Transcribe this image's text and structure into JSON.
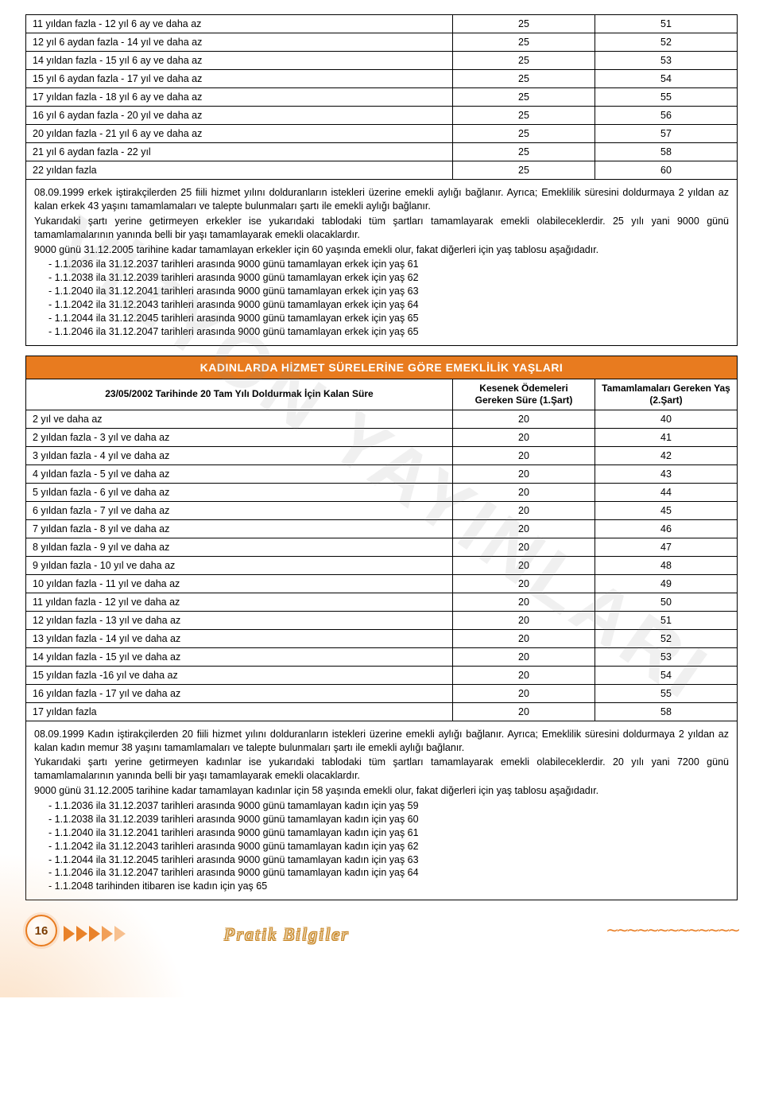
{
  "watermark": "VİZYON YAYINLARI",
  "table1": {
    "rows": [
      [
        "11 yıldan fazla - 12 yıl 6 ay ve daha az",
        "25",
        "51"
      ],
      [
        "12 yıl 6 aydan fazla - 14 yıl ve daha az",
        "25",
        "52"
      ],
      [
        "14 yıldan fazla - 15 yıl 6 ay ve daha az",
        "25",
        "53"
      ],
      [
        "15 yıl 6 aydan fazla - 17 yıl ve daha az",
        "25",
        "54"
      ],
      [
        "17 yıldan fazla - 18 yıl 6 ay ve daha az",
        "25",
        "55"
      ],
      [
        "16 yıl 6 aydan fazla - 20 yıl ve daha az",
        "25",
        "56"
      ],
      [
        "20 yıldan fazla - 21 yıl 6 ay ve daha az",
        "25",
        "57"
      ],
      [
        "21 yıl 6 aydan fazla - 22 yıl",
        "25",
        "58"
      ],
      [
        "22 yıldan fazla",
        "25",
        "60"
      ]
    ],
    "notes": {
      "paragraphs": [
        "08.09.1999 erkek iştirakçilerden 25 fiili hizmet yılını dolduranların istekleri üzerine emekli aylığı bağlanır. Ayrıca; Emeklilik süresini doldurmaya 2 yıldan az kalan erkek 43 yaşını tamamlamaları ve talepte bulunmaları şartı ile emekli aylığı bağlanır.",
        "Yukarıdaki şartı yerine getirmeyen erkekler ise yukarıdaki tablodaki tüm şartları tamamlayarak emekli olabileceklerdir. 25 yılı yani 9000 günü tamamlamalarının yanında belli bir yaşı tamamlayarak emekli olacaklardır.",
        "9000 günü 31.12.2005 tarihine kadar tamamlayan erkekler için 60 yaşında emekli olur, fakat diğerleri için yaş tablosu aşağıdadır."
      ],
      "bullets": [
        "- 1.1.2036 ila 31.12.2037 tarihleri arasında 9000 günü tamamlayan erkek için yaş 61",
        "- 1.1.2038 ila 31.12.2039 tarihleri arasında 9000 günü tamamlayan erkek için yaş 62",
        "- 1.1.2040 ila 31.12.2041 tarihleri arasında 9000 günü tamamlayan erkek için yaş 63",
        "- 1.1.2042 ila 31.12.2043 tarihleri arasında 9000 günü tamamlayan erkek için yaş 64",
        "- 1.1.2044 ila 31.12.2045 tarihleri arasında 9000 günü tamamlayan erkek için yaş 65",
        "- 1.1.2046 ila 31.12.2047 tarihleri arasında 9000 günü tamamlayan erkek için yaş 65"
      ]
    }
  },
  "table2": {
    "title": "KADINLARDA HİZMET SÜRELERİNE GÖRE EMEKLİLİK YAŞLARI",
    "headers": {
      "col1": "23/05/2002 Tarihinde 20 Tam Yılı Doldurmak İçin Kalan Süre",
      "col2": "Kesenek Ödemeleri Gereken Süre (1.Şart)",
      "col3": "Tamamlamaları Gereken Yaş (2.Şart)"
    },
    "rows": [
      [
        "2 yıl ve daha az",
        "20",
        "40"
      ],
      [
        "2 yıldan fazla - 3 yıl ve daha az",
        "20",
        "41"
      ],
      [
        "3 yıldan fazla - 4 yıl ve daha az",
        "20",
        "42"
      ],
      [
        "4 yıldan fazla - 5 yıl ve daha az",
        "20",
        "43"
      ],
      [
        "5 yıldan fazla - 6 yıl ve daha az",
        "20",
        "44"
      ],
      [
        "6 yıldan fazla - 7 yıl ve daha az",
        "20",
        "45"
      ],
      [
        "7 yıldan fazla - 8 yıl ve daha az",
        "20",
        "46"
      ],
      [
        "8 yıldan fazla - 9 yıl ve daha az",
        "20",
        "47"
      ],
      [
        "9 yıldan fazla - 10 yıl ve daha az",
        "20",
        "48"
      ],
      [
        "10 yıldan fazla - 11 yıl ve daha az",
        "20",
        "49"
      ],
      [
        "11 yıldan fazla - 12 yıl ve daha az",
        "20",
        "50"
      ],
      [
        "12 yıldan fazla - 13 yıl ve daha az",
        "20",
        "51"
      ],
      [
        "13 yıldan fazla - 14 yıl ve daha az",
        "20",
        "52"
      ],
      [
        "14 yıldan fazla - 15 yıl ve daha az",
        "20",
        "53"
      ],
      [
        "15 yıldan fazla -16 yıl ve daha az",
        "20",
        "54"
      ],
      [
        "16 yıldan fazla - 17 yıl ve daha az",
        "20",
        "55"
      ],
      [
        "17 yıldan fazla",
        "20",
        "58"
      ]
    ],
    "notes": {
      "paragraphs": [
        "08.09.1999 Kadın iştirakçilerden 20 fiili hizmet yılını dolduranların istekleri üzerine emekli aylığı bağlanır. Ayrıca; Emeklilik süresini doldurmaya 2 yıldan az kalan kadın memur 38 yaşını tamamlamaları ve talepte bulunmaları şartı ile emekli aylığı bağlanır.",
        "Yukarıdaki şartı yerine getirmeyen kadınlar ise yukarıdaki tablodaki tüm şartları tamamlayarak emekli olabileceklerdir. 20 yılı yani 7200 günü tamamlamalarının yanında belli bir yaşı tamamlayarak emekli olacaklardır.",
        "9000 günü 31.12.2005 tarihine kadar tamamlayan kadınlar için 58 yaşında emekli olur, fakat diğerleri için yaş tablosu aşağıdadır."
      ],
      "bullets": [
        "- 1.1.2036 ila 31.12.2037 tarihleri arasında 9000 günü tamamlayan kadın için yaş 59",
        "- 1.1.2038 ila 31.12.2039 tarihleri arasında 9000 günü tamamlayan kadın için yaş 60",
        "- 1.1.2040 ila 31.12.2041 tarihleri arasında 9000 günü tamamlayan kadın için yaş 61",
        "- 1.1.2042 ila 31.12.2043 tarihleri arasında 9000 günü tamamlayan kadın için yaş 62",
        "- 1.1.2044 ila 31.12.2045 tarihleri arasında 9000 günü tamamlayan kadın için yaş 63",
        "- 1.1.2046 ila 31.12.2047 tarihleri arasında 9000 günü tamamlayan kadın için yaş 64",
        "- 1.1.2048 tarihinden itibaren ise kadın için yaş 65"
      ]
    }
  },
  "footer": {
    "pageNumber": "16",
    "title": "Pratik Bilgiler",
    "waves": "∼∼∼∼∼∼∼∼∼∼∼∼∼"
  },
  "colors": {
    "accent": "#e87b1f",
    "border": "#000000",
    "text": "#000000",
    "background": "#ffffff"
  }
}
